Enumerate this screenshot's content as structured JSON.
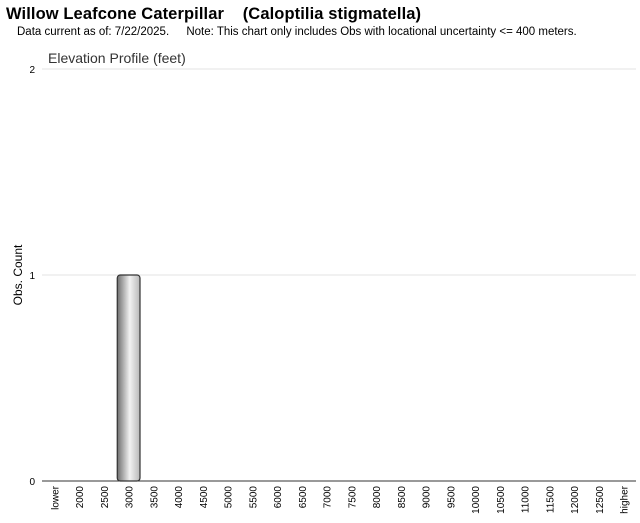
{
  "header": {
    "common_name": "Willow Leafcone Caterpillar",
    "scientific_name": "(Caloptilia stigmatella)",
    "data_current": "Data current as of: 7/22/2025.",
    "note": "Note: This chart only includes Obs with locational uncertainty <= 400 meters."
  },
  "chart_data": {
    "type": "bar",
    "title": "Elevation Profile (feet)",
    "xlabel": "",
    "ylabel": "Obs. Count",
    "ylim": [
      0,
      2
    ],
    "yticks": [
      0,
      1,
      2
    ],
    "grid": true,
    "categories": [
      "lower",
      "2000",
      "2500",
      "3000",
      "3500",
      "4000",
      "4500",
      "5000",
      "5500",
      "6000",
      "6500",
      "7000",
      "7500",
      "8000",
      "8500",
      "9000",
      "9500",
      "10000",
      "10500",
      "11000",
      "11500",
      "12000",
      "12500",
      "higher"
    ],
    "values": [
      0,
      0,
      0,
      1,
      0,
      0,
      0,
      0,
      0,
      0,
      0,
      0,
      0,
      0,
      0,
      0,
      0,
      0,
      0,
      0,
      0,
      0,
      0,
      0
    ],
    "colors": {
      "bar_light": "#f2f2f2",
      "bar_mid": "#b8b8b8",
      "bar_dark": "#6e6e6e",
      "bar_stroke": "#333333",
      "grid": "#e3e3e3",
      "axis": "#333333"
    }
  }
}
